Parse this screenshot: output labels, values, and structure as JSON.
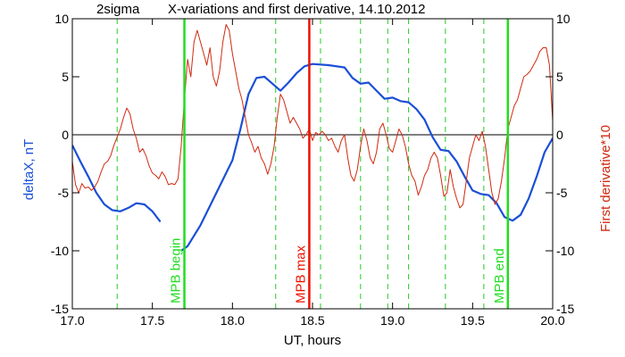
{
  "chart_data": {
    "type": "line",
    "title": "X-variations and first derivative, 14.10.2012",
    "corner_label": "2sigma",
    "xlabel": "UT, hours",
    "ylabel_left": "deltaX, nT",
    "ylabel_right": "First derivative*10",
    "xlim": [
      17.0,
      20.0
    ],
    "ylim_left": [
      -15,
      10
    ],
    "ylim_right": [
      -15,
      10
    ],
    "x_ticks": [
      {
        "value": 17.0,
        "label": "17.0"
      },
      {
        "value": 17.5,
        "label": "17.5"
      },
      {
        "value": 18.0,
        "label": "18.0"
      },
      {
        "value": 18.5,
        "label": "18.5"
      },
      {
        "value": 19.0,
        "label": "19.0"
      },
      {
        "value": 19.5,
        "label": "19.5"
      },
      {
        "value": 20.0,
        "label": "20.0"
      }
    ],
    "y_ticks_left": [
      {
        "value": 10,
        "label": "10"
      },
      {
        "value": 5,
        "label": "5"
      },
      {
        "value": 0,
        "label": "0"
      },
      {
        "value": -5,
        "label": "-5"
      },
      {
        "value": -10,
        "label": "-10"
      },
      {
        "value": -15,
        "label": "-15"
      }
    ],
    "y_ticks_right": [
      {
        "value": 10,
        "label": "10"
      },
      {
        "value": 5,
        "label": "5"
      },
      {
        "value": 0,
        "label": "0"
      },
      {
        "value": -5,
        "label": "-5"
      },
      {
        "value": -10,
        "label": "-10"
      },
      {
        "value": -15,
        "label": "-15"
      }
    ],
    "zero_line": 0,
    "colors": {
      "deltaX": "#1a4fd6",
      "derivative": "#d02a10",
      "marker_green": "#22dd22",
      "marker_red": "#ee1100",
      "dashed": "#22cc22",
      "axis": "#000000",
      "label_left": "#1a4fd6",
      "label_right": "#d02a10"
    },
    "series": [
      {
        "id": "deltaX",
        "segments": [
          [
            [
              17.0,
              -0.9
            ],
            [
              17.05,
              -2.3
            ],
            [
              17.1,
              -3.6
            ],
            [
              17.15,
              -5.0
            ],
            [
              17.2,
              -6.0
            ],
            [
              17.25,
              -6.5
            ],
            [
              17.3,
              -6.6
            ],
            [
              17.35,
              -6.3
            ],
            [
              17.4,
              -5.9
            ],
            [
              17.45,
              -6.0
            ],
            [
              17.5,
              -6.6
            ],
            [
              17.55,
              -7.5
            ]
          ],
          [
            [
              17.68,
              -10.0
            ],
            [
              17.72,
              -9.6
            ],
            [
              17.8,
              -7.8
            ],
            [
              17.9,
              -5.0
            ],
            [
              18.0,
              -2.2
            ],
            [
              18.05,
              0.5
            ],
            [
              18.1,
              3.5
            ],
            [
              18.15,
              4.9
            ],
            [
              18.2,
              5.0
            ],
            [
              18.25,
              4.4
            ],
            [
              18.3,
              3.8
            ],
            [
              18.35,
              4.5
            ],
            [
              18.4,
              5.3
            ],
            [
              18.45,
              5.9
            ],
            [
              18.5,
              6.1
            ],
            [
              18.6,
              6.0
            ],
            [
              18.7,
              5.8
            ],
            [
              18.75,
              4.9
            ],
            [
              18.8,
              4.4
            ],
            [
              18.85,
              4.5
            ],
            [
              18.9,
              3.8
            ],
            [
              18.95,
              3.1
            ],
            [
              19.0,
              3.2
            ],
            [
              19.05,
              2.9
            ],
            [
              19.1,
              2.8
            ],
            [
              19.15,
              2.2
            ],
            [
              19.2,
              1.3
            ],
            [
              19.25,
              -0.2
            ],
            [
              19.3,
              -1.3
            ],
            [
              19.35,
              -1.4
            ],
            [
              19.4,
              -2.3
            ],
            [
              19.45,
              -3.6
            ],
            [
              19.5,
              -4.8
            ],
            [
              19.55,
              -5.1
            ],
            [
              19.6,
              -5.2
            ],
            [
              19.65,
              -5.9
            ],
            [
              19.7,
              -7.1
            ],
            [
              19.75,
              -7.4
            ],
            [
              19.8,
              -6.9
            ],
            [
              19.85,
              -5.5
            ],
            [
              19.9,
              -3.6
            ],
            [
              19.95,
              -1.5
            ],
            [
              20.0,
              -0.3
            ]
          ]
        ]
      },
      {
        "id": "derivative",
        "segments": [
          [
            [
              17.0,
              -2.3
            ],
            [
              17.02,
              -4.3
            ],
            [
              17.04,
              -5.0
            ],
            [
              17.06,
              -4.2
            ],
            [
              17.08,
              -4.6
            ],
            [
              17.1,
              -4.5
            ],
            [
              17.12,
              -4.8
            ],
            [
              17.14,
              -4.5
            ],
            [
              17.16,
              -4.0
            ],
            [
              17.18,
              -3.2
            ],
            [
              17.2,
              -2.5
            ],
            [
              17.22,
              -2.3
            ],
            [
              17.24,
              -1.8
            ],
            [
              17.26,
              -0.9
            ],
            [
              17.28,
              -0.2
            ],
            [
              17.3,
              0.5
            ],
            [
              17.32,
              1.5
            ],
            [
              17.34,
              2.3
            ],
            [
              17.36,
              1.8
            ],
            [
              17.38,
              0.5
            ],
            [
              17.4,
              -0.3
            ],
            [
              17.42,
              -1.5
            ],
            [
              17.44,
              -1.2
            ],
            [
              17.46,
              -1.8
            ],
            [
              17.48,
              -2.7
            ],
            [
              17.5,
              -3.3
            ],
            [
              17.52,
              -3.5
            ],
            [
              17.54,
              -3.8
            ],
            [
              17.56,
              -3.2
            ],
            [
              17.58,
              -3.6
            ],
            [
              17.6,
              -4.3
            ],
            [
              17.62,
              -4.2
            ],
            [
              17.64,
              -4.3
            ],
            [
              17.66,
              -3.8
            ],
            [
              17.68,
              -1.0
            ],
            [
              17.7,
              3.0
            ],
            [
              17.72,
              6.5
            ],
            [
              17.74,
              5.0
            ],
            [
              17.76,
              8.0
            ],
            [
              17.78,
              9.0
            ],
            [
              17.8,
              8.0
            ],
            [
              17.82,
              7.0
            ],
            [
              17.84,
              6.0
            ],
            [
              17.86,
              7.5
            ],
            [
              17.88,
              5.0
            ],
            [
              17.9,
              4.2
            ],
            [
              17.92,
              5.5
            ],
            [
              17.94,
              8.0
            ],
            [
              17.96,
              9.5
            ],
            [
              17.98,
              9.0
            ],
            [
              18.0,
              7.0
            ],
            [
              18.02,
              5.5
            ],
            [
              18.04,
              4.0
            ],
            [
              18.06,
              3.0
            ],
            [
              18.08,
              1.5
            ],
            [
              18.1,
              0.0
            ],
            [
              18.12,
              -0.7
            ],
            [
              18.14,
              -1.5
            ],
            [
              18.16,
              -1.0
            ],
            [
              18.18,
              -2.0
            ],
            [
              18.2,
              -2.5
            ],
            [
              18.22,
              -3.4
            ],
            [
              18.24,
              -2.5
            ],
            [
              18.26,
              -1.0
            ],
            [
              18.28,
              1.5
            ],
            [
              18.3,
              3.5
            ],
            [
              18.32,
              3.0
            ],
            [
              18.34,
              2.0
            ],
            [
              18.36,
              1.0
            ],
            [
              18.38,
              1.5
            ],
            [
              18.4,
              1.0
            ],
            [
              18.42,
              0.5
            ],
            [
              18.44,
              -0.3
            ],
            [
              18.46,
              0.0
            ],
            [
              18.48,
              0.5
            ],
            [
              18.5,
              -0.5
            ],
            [
              18.52,
              0.2
            ],
            [
              18.54,
              0.0
            ],
            [
              18.56,
              0.3
            ],
            [
              18.58,
              0.0
            ],
            [
              18.6,
              -0.5
            ],
            [
              18.62,
              -0.3
            ],
            [
              18.64,
              -1.0
            ],
            [
              18.66,
              -1.5
            ],
            [
              18.68,
              -0.5
            ],
            [
              18.7,
              0.0
            ],
            [
              18.72,
              -2.0
            ],
            [
              18.74,
              -3.5
            ],
            [
              18.76,
              -4.0
            ],
            [
              18.78,
              -3.0
            ],
            [
              18.8,
              -1.0
            ],
            [
              18.82,
              0.5
            ],
            [
              18.84,
              -0.5
            ],
            [
              18.86,
              -2.0
            ],
            [
              18.88,
              -2.5
            ],
            [
              18.9,
              -1.5
            ],
            [
              18.92,
              0.5
            ],
            [
              18.94,
              1.0
            ],
            [
              18.96,
              0.0
            ],
            [
              18.98,
              -1.2
            ],
            [
              19.0,
              -1.5
            ],
            [
              19.02,
              -0.5
            ],
            [
              19.04,
              0.5
            ],
            [
              19.06,
              0.0
            ],
            [
              19.08,
              -1.0
            ],
            [
              19.1,
              -2.5
            ],
            [
              19.12,
              -3.5
            ],
            [
              19.14,
              -4.0
            ],
            [
              19.16,
              -5.2
            ],
            [
              19.18,
              -4.5
            ],
            [
              19.2,
              -3.5
            ],
            [
              19.22,
              -3.0
            ],
            [
              19.24,
              -2.0
            ],
            [
              19.26,
              -1.5
            ],
            [
              19.28,
              -2.0
            ],
            [
              19.3,
              -3.5
            ],
            [
              19.32,
              -5.3
            ],
            [
              19.34,
              -5.0
            ],
            [
              19.36,
              -3.0
            ],
            [
              19.38,
              -4.5
            ],
            [
              19.4,
              -5.5
            ],
            [
              19.42,
              -6.3
            ],
            [
              19.44,
              -6.0
            ],
            [
              19.46,
              -4.0
            ],
            [
              19.48,
              -2.0
            ],
            [
              19.5,
              -1.0
            ],
            [
              19.52,
              0.0
            ],
            [
              19.54,
              -0.5
            ],
            [
              19.56,
              0.3
            ],
            [
              19.58,
              -1.0
            ],
            [
              19.6,
              -3.0
            ],
            [
              19.62,
              -5.0
            ],
            [
              19.64,
              -6.0
            ],
            [
              19.66,
              -5.5
            ],
            [
              19.68,
              -4.0
            ],
            [
              19.7,
              -2.0
            ],
            [
              19.72,
              0.5
            ],
            [
              19.74,
              1.5
            ],
            [
              19.76,
              2.5
            ],
            [
              19.78,
              3.0
            ],
            [
              19.8,
              4.0
            ],
            [
              19.82,
              5.0
            ],
            [
              19.84,
              5.2
            ],
            [
              19.86,
              5.5
            ],
            [
              19.88,
              6.0
            ],
            [
              19.9,
              6.5
            ],
            [
              19.92,
              7.2
            ],
            [
              19.94,
              7.5
            ],
            [
              19.96,
              7.5
            ],
            [
              19.98,
              6.0
            ],
            [
              20.0,
              1.2
            ]
          ]
        ]
      }
    ],
    "markers": [
      {
        "x": 17.7,
        "style": "solid",
        "color": "#22dd22",
        "label": "MPB begin"
      },
      {
        "x": 18.48,
        "style": "solid",
        "color": "#ee1100",
        "label": "MPB max"
      },
      {
        "x": 19.72,
        "style": "solid",
        "color": "#22dd22",
        "label": "MPB end"
      }
    ],
    "dashed_lines": [
      17.28,
      18.27,
      18.55,
      18.8,
      18.97,
      19.1,
      19.33,
      19.57
    ]
  }
}
